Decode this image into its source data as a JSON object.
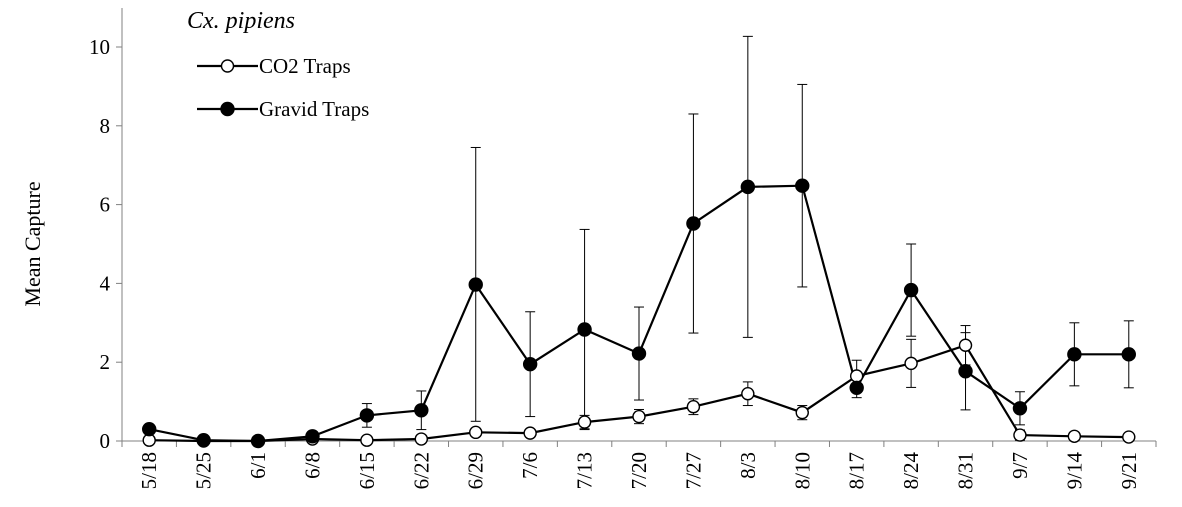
{
  "chart_data": {
    "type": "line",
    "title": "Cx. pipiens",
    "xlabel": "",
    "ylabel": "Mean Capture",
    "ylim": [
      0,
      10
    ],
    "yticks": [
      0,
      2,
      4,
      6,
      8,
      10
    ],
    "grid": false,
    "legend_position": "top-left",
    "categories": [
      "5/18",
      "5/25",
      "6/1",
      "6/8",
      "6/15",
      "6/22",
      "6/29",
      "7/6",
      "7/13",
      "7/20",
      "7/27",
      "8/3",
      "8/10",
      "8/17",
      "8/24",
      "8/31",
      "9/7",
      "9/14",
      "9/21"
    ],
    "series": [
      {
        "name": "CO2 Traps",
        "marker": "open-circle",
        "values": [
          0.02,
          0.0,
          0.0,
          0.05,
          0.02,
          0.05,
          0.22,
          0.2,
          0.48,
          0.62,
          0.87,
          1.2,
          0.72,
          1.65,
          1.97,
          2.43,
          0.15,
          0.12,
          0.1
        ],
        "err_upper": [
          0.02,
          0.02,
          0.02,
          0.08,
          0.04,
          0.08,
          0.32,
          0.28,
          0.65,
          0.8,
          1.07,
          1.5,
          0.9,
          2.05,
          2.58,
          2.93,
          0.28,
          0.2,
          0.18
        ],
        "err_lower": [
          0.0,
          0.0,
          0.0,
          0.02,
          0.0,
          0.02,
          0.12,
          0.12,
          0.31,
          0.44,
          0.67,
          0.9,
          0.54,
          1.25,
          1.36,
          1.93,
          0.02,
          0.04,
          0.02
        ]
      },
      {
        "name": "Gravid Traps",
        "marker": "filled-circle",
        "values": [
          0.3,
          0.02,
          0.0,
          0.12,
          0.65,
          0.78,
          3.97,
          1.95,
          2.83,
          2.22,
          5.52,
          6.45,
          6.48,
          1.35,
          3.83,
          1.77,
          0.83,
          2.2,
          2.2
        ],
        "err_upper": [
          0.32,
          0.05,
          0.02,
          0.2,
          0.95,
          1.27,
          7.45,
          3.28,
          5.37,
          3.4,
          8.3,
          10.27,
          9.05,
          1.6,
          5.0,
          2.75,
          1.25,
          3.0,
          3.05
        ],
        "err_lower": [
          0.28,
          0.0,
          0.0,
          0.04,
          0.35,
          0.29,
          0.5,
          0.62,
          0.29,
          1.04,
          2.74,
          2.63,
          3.91,
          1.1,
          2.66,
          0.79,
          0.41,
          1.4,
          1.35
        ]
      }
    ]
  }
}
